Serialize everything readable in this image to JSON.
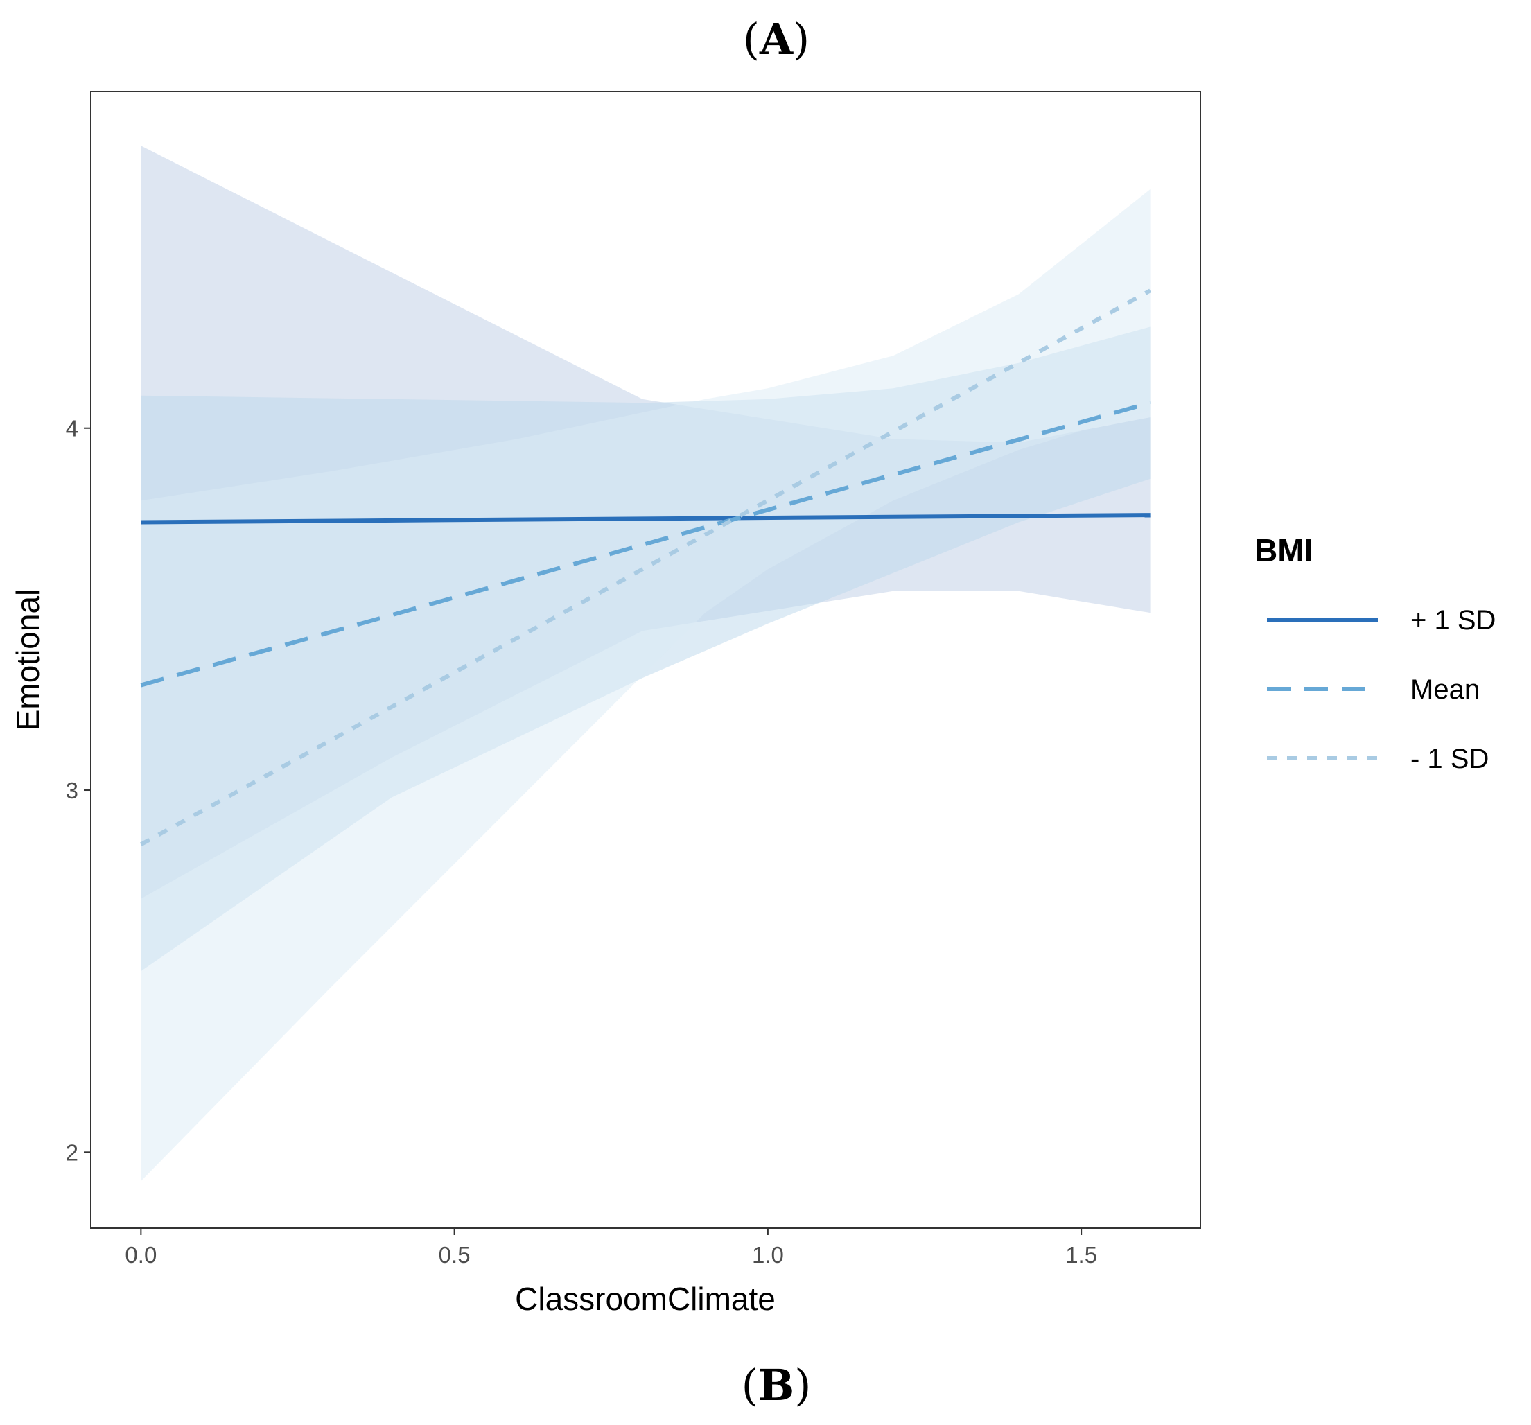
{
  "panel_labels": {
    "top": "A",
    "bottom": "B"
  },
  "chart_data": {
    "type": "line",
    "xlabel": "ClassroomClimate",
    "ylabel": "Emotional",
    "xlim": [
      -0.08,
      1.69
    ],
    "ylim": [
      1.79,
      4.93
    ],
    "xticks": [
      {
        "value": 0.0,
        "label": "0.0"
      },
      {
        "value": 0.5,
        "label": "0.5"
      },
      {
        "value": 1.0,
        "label": "1.0"
      },
      {
        "value": 1.5,
        "label": "1.5"
      }
    ],
    "yticks": [
      {
        "value": 2,
        "label": "2"
      },
      {
        "value": 3,
        "label": "3"
      },
      {
        "value": 4,
        "label": "4"
      }
    ],
    "grid": false,
    "legend": {
      "title": "BMI",
      "position": "right"
    },
    "series": [
      {
        "name": "+ 1 SD",
        "color": "#2a6fba",
        "dash": "solid",
        "x": [
          0.0,
          1.61
        ],
        "y": [
          3.74,
          3.76
        ],
        "band_x": [
          0.0,
          0.4,
          0.8,
          1.2,
          1.4,
          1.61
        ],
        "band_lower": [
          2.7,
          3.09,
          3.44,
          3.55,
          3.55,
          3.49
        ],
        "band_upper": [
          4.78,
          4.43,
          4.08,
          3.97,
          3.96,
          4.03
        ],
        "band_color": "#c9d6ea",
        "band_opacity": 0.62
      },
      {
        "name": "Mean",
        "color": "#66a8d6",
        "dash": "dashed",
        "x": [
          0.0,
          1.61
        ],
        "y": [
          3.29,
          4.07
        ],
        "band_x": [
          0.0,
          0.4,
          0.8,
          1.0,
          1.2,
          1.4,
          1.61
        ],
        "band_lower": [
          2.5,
          2.98,
          3.31,
          3.46,
          3.6,
          3.74,
          3.86
        ],
        "band_upper": [
          4.09,
          4.08,
          4.07,
          4.08,
          4.11,
          4.18,
          4.28
        ],
        "band_color": "#bcd7ec",
        "band_opacity": 0.5
      },
      {
        "name": "- 1 SD",
        "color": "#a9cbe3",
        "dash": "dotted",
        "x": [
          0.0,
          1.61
        ],
        "y": [
          2.85,
          4.38
        ],
        "band_x": [
          0.0,
          0.3,
          0.6,
          0.9,
          1.0,
          1.2,
          1.4,
          1.61
        ],
        "band_lower": [
          1.92,
          2.45,
          2.97,
          3.49,
          3.61,
          3.8,
          3.94,
          4.05
        ],
        "band_upper": [
          3.8,
          3.88,
          3.97,
          4.08,
          4.11,
          4.2,
          4.37,
          4.66
        ],
        "band_color": "#dcebf6",
        "band_opacity": 0.5
      }
    ]
  }
}
